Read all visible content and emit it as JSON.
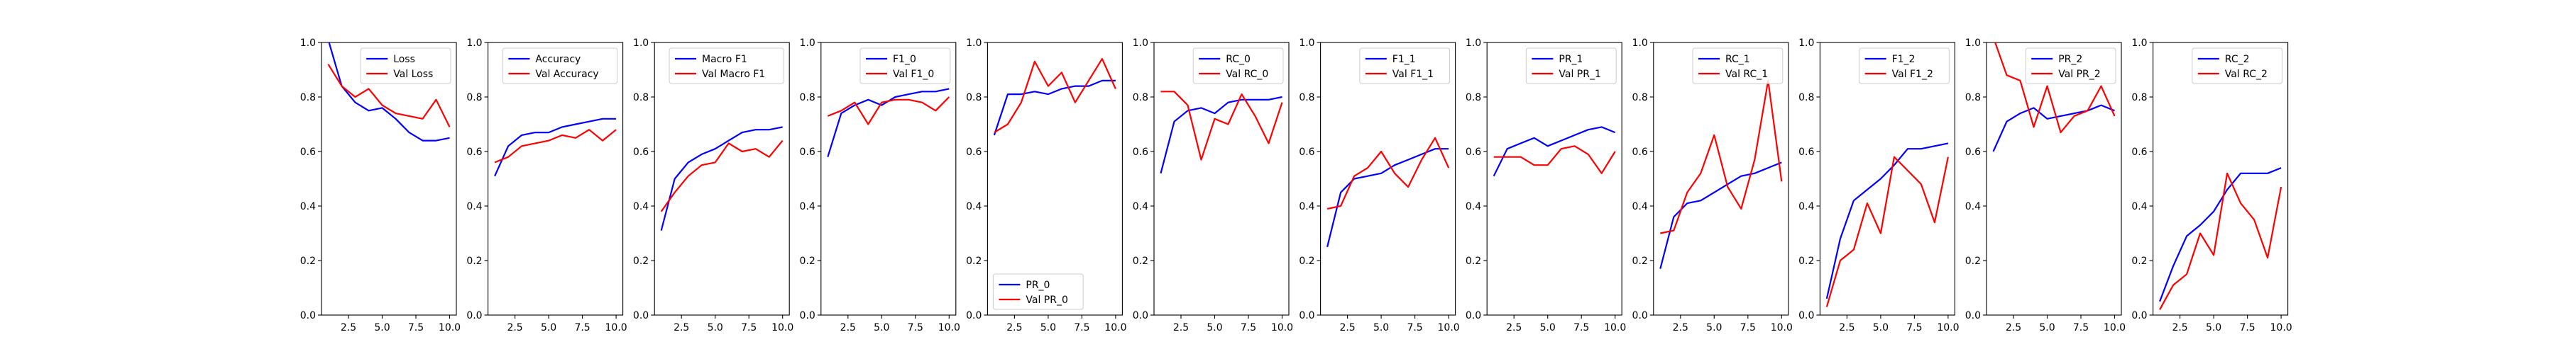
{
  "chart_data": [
    {
      "type": "line",
      "x": [
        1,
        2,
        3,
        4,
        5,
        6,
        7,
        8,
        9,
        10
      ],
      "xlim": [
        0.5,
        10.5
      ],
      "ylim": [
        0,
        1
      ],
      "xticks": [
        2.5,
        5.0,
        7.5,
        10.0
      ],
      "yticks": [
        0.0,
        0.2,
        0.4,
        0.6,
        0.8,
        1.0
      ],
      "legend_position": "top-right",
      "series": [
        {
          "name": "Loss",
          "color": "#0000ff",
          "values": [
            1.01,
            0.84,
            0.78,
            0.75,
            0.76,
            0.72,
            0.67,
            0.64,
            0.64,
            0.65
          ]
        },
        {
          "name": "Val Loss",
          "color": "#ff0000",
          "values": [
            0.92,
            0.84,
            0.8,
            0.83,
            0.77,
            0.74,
            0.73,
            0.72,
            0.79,
            0.69
          ]
        }
      ]
    },
    {
      "type": "line",
      "x": [
        1,
        2,
        3,
        4,
        5,
        6,
        7,
        8,
        9,
        10
      ],
      "xlim": [
        0.5,
        10.5
      ],
      "ylim": [
        0,
        1
      ],
      "xticks": [
        2.5,
        5.0,
        7.5,
        10.0
      ],
      "yticks": [
        0.0,
        0.2,
        0.4,
        0.6,
        0.8,
        1.0
      ],
      "legend_position": "top-right",
      "series": [
        {
          "name": "Accuracy",
          "color": "#0000ff",
          "values": [
            0.51,
            0.62,
            0.66,
            0.67,
            0.67,
            0.69,
            0.7,
            0.71,
            0.72,
            0.72
          ]
        },
        {
          "name": "Val Accuracy",
          "color": "#ff0000",
          "values": [
            0.56,
            0.58,
            0.62,
            0.63,
            0.64,
            0.66,
            0.65,
            0.68,
            0.64,
            0.68
          ]
        }
      ]
    },
    {
      "type": "line",
      "x": [
        1,
        2,
        3,
        4,
        5,
        6,
        7,
        8,
        9,
        10
      ],
      "xlim": [
        0.5,
        10.5
      ],
      "ylim": [
        0,
        1
      ],
      "xticks": [
        2.5,
        5.0,
        7.5,
        10.0
      ],
      "yticks": [
        0.0,
        0.2,
        0.4,
        0.6,
        0.8,
        1.0
      ],
      "legend_position": "top-right",
      "series": [
        {
          "name": "Macro F1",
          "color": "#0000ff",
          "values": [
            0.31,
            0.5,
            0.56,
            0.59,
            0.61,
            0.64,
            0.67,
            0.68,
            0.68,
            0.69
          ]
        },
        {
          "name": "Val Macro F1",
          "color": "#ff0000",
          "values": [
            0.38,
            0.45,
            0.51,
            0.55,
            0.56,
            0.63,
            0.6,
            0.61,
            0.58,
            0.64
          ]
        }
      ]
    },
    {
      "type": "line",
      "x": [
        1,
        2,
        3,
        4,
        5,
        6,
        7,
        8,
        9,
        10
      ],
      "xlim": [
        0.5,
        10.5
      ],
      "ylim": [
        0,
        1
      ],
      "xticks": [
        2.5,
        5.0,
        7.5,
        10.0
      ],
      "yticks": [
        0.0,
        0.2,
        0.4,
        0.6,
        0.8,
        1.0
      ],
      "legend_position": "top-right",
      "series": [
        {
          "name": "F1_0",
          "color": "#0000ff",
          "values": [
            0.58,
            0.74,
            0.77,
            0.79,
            0.77,
            0.8,
            0.81,
            0.82,
            0.82,
            0.83
          ]
        },
        {
          "name": "Val F1_0",
          "color": "#ff0000",
          "values": [
            0.73,
            0.75,
            0.78,
            0.7,
            0.78,
            0.79,
            0.79,
            0.78,
            0.75,
            0.8
          ]
        }
      ]
    },
    {
      "type": "line",
      "x": [
        1,
        2,
        3,
        4,
        5,
        6,
        7,
        8,
        9,
        10
      ],
      "xlim": [
        0.5,
        10.5
      ],
      "ylim": [
        0,
        1
      ],
      "xticks": [
        2.5,
        5.0,
        7.5,
        10.0
      ],
      "yticks": [
        0.0,
        0.2,
        0.4,
        0.6,
        0.8,
        1.0
      ],
      "legend_position": "bottom-left",
      "series": [
        {
          "name": "PR_0",
          "color": "#0000ff",
          "values": [
            0.66,
            0.81,
            0.81,
            0.82,
            0.81,
            0.83,
            0.84,
            0.84,
            0.86,
            0.86
          ]
        },
        {
          "name": "Val PR_0",
          "color": "#ff0000",
          "values": [
            0.67,
            0.7,
            0.78,
            0.93,
            0.84,
            0.89,
            0.78,
            0.86,
            0.94,
            0.83
          ]
        }
      ]
    },
    {
      "type": "line",
      "x": [
        1,
        2,
        3,
        4,
        5,
        6,
        7,
        8,
        9,
        10
      ],
      "xlim": [
        0.5,
        10.5
      ],
      "ylim": [
        0,
        1
      ],
      "xticks": [
        2.5,
        5.0,
        7.5,
        10.0
      ],
      "yticks": [
        0.0,
        0.2,
        0.4,
        0.6,
        0.8,
        1.0
      ],
      "legend_position": "top-right",
      "series": [
        {
          "name": "RC_0",
          "color": "#0000ff",
          "values": [
            0.52,
            0.71,
            0.75,
            0.76,
            0.74,
            0.78,
            0.79,
            0.79,
            0.79,
            0.8
          ]
        },
        {
          "name": "Val RC_0",
          "color": "#ff0000",
          "values": [
            0.82,
            0.82,
            0.77,
            0.57,
            0.72,
            0.7,
            0.81,
            0.73,
            0.63,
            0.78
          ]
        }
      ]
    },
    {
      "type": "line",
      "x": [
        1,
        2,
        3,
        4,
        5,
        6,
        7,
        8,
        9,
        10
      ],
      "xlim": [
        0.5,
        10.5
      ],
      "ylim": [
        0,
        1
      ],
      "xticks": [
        2.5,
        5.0,
        7.5,
        10.0
      ],
      "yticks": [
        0.0,
        0.2,
        0.4,
        0.6,
        0.8,
        1.0
      ],
      "legend_position": "top-right",
      "series": [
        {
          "name": "F1_1",
          "color": "#0000ff",
          "values": [
            0.25,
            0.45,
            0.5,
            0.51,
            0.52,
            0.55,
            0.57,
            0.59,
            0.61,
            0.61
          ]
        },
        {
          "name": "Val F1_1",
          "color": "#ff0000",
          "values": [
            0.39,
            0.4,
            0.51,
            0.54,
            0.6,
            0.52,
            0.47,
            0.57,
            0.65,
            0.54
          ]
        }
      ]
    },
    {
      "type": "line",
      "x": [
        1,
        2,
        3,
        4,
        5,
        6,
        7,
        8,
        9,
        10
      ],
      "xlim": [
        0.5,
        10.5
      ],
      "ylim": [
        0,
        1
      ],
      "xticks": [
        2.5,
        5.0,
        7.5,
        10.0
      ],
      "yticks": [
        0.0,
        0.2,
        0.4,
        0.6,
        0.8,
        1.0
      ],
      "legend_position": "top-right",
      "series": [
        {
          "name": "PR_1",
          "color": "#0000ff",
          "values": [
            0.51,
            0.61,
            0.63,
            0.65,
            0.62,
            0.64,
            0.66,
            0.68,
            0.69,
            0.67
          ]
        },
        {
          "name": "Val PR_1",
          "color": "#ff0000",
          "values": [
            0.58,
            0.58,
            0.58,
            0.55,
            0.55,
            0.61,
            0.62,
            0.59,
            0.52,
            0.6
          ]
        }
      ]
    },
    {
      "type": "line",
      "x": [
        1,
        2,
        3,
        4,
        5,
        6,
        7,
        8,
        9,
        10
      ],
      "xlim": [
        0.5,
        10.5
      ],
      "ylim": [
        0,
        1
      ],
      "xticks": [
        2.5,
        5.0,
        7.5,
        10.0
      ],
      "yticks": [
        0.0,
        0.2,
        0.4,
        0.6,
        0.8,
        1.0
      ],
      "legend_position": "top-right",
      "series": [
        {
          "name": "RC_1",
          "color": "#0000ff",
          "values": [
            0.17,
            0.36,
            0.41,
            0.42,
            0.45,
            0.48,
            0.51,
            0.52,
            0.54,
            0.56
          ]
        },
        {
          "name": "Val RC_1",
          "color": "#ff0000",
          "values": [
            0.3,
            0.31,
            0.45,
            0.52,
            0.66,
            0.47,
            0.39,
            0.57,
            0.86,
            0.49
          ]
        }
      ]
    },
    {
      "type": "line",
      "x": [
        1,
        2,
        3,
        4,
        5,
        6,
        7,
        8,
        9,
        10
      ],
      "xlim": [
        0.5,
        10.5
      ],
      "ylim": [
        0,
        1
      ],
      "xticks": [
        2.5,
        5.0,
        7.5,
        10.0
      ],
      "yticks": [
        0.0,
        0.2,
        0.4,
        0.6,
        0.8,
        1.0
      ],
      "legend_position": "top-right",
      "series": [
        {
          "name": "F1_2",
          "color": "#0000ff",
          "values": [
            0.06,
            0.28,
            0.42,
            0.46,
            0.5,
            0.55,
            0.61,
            0.61,
            0.62,
            0.63
          ]
        },
        {
          "name": "Val F1_2",
          "color": "#ff0000",
          "values": [
            0.03,
            0.2,
            0.24,
            0.41,
            0.3,
            0.58,
            0.53,
            0.48,
            0.34,
            0.58
          ]
        }
      ]
    },
    {
      "type": "line",
      "x": [
        1,
        2,
        3,
        4,
        5,
        6,
        7,
        8,
        9,
        10
      ],
      "xlim": [
        0.5,
        10.5
      ],
      "ylim": [
        0,
        1
      ],
      "xticks": [
        2.5,
        5.0,
        7.5,
        10.0
      ],
      "yticks": [
        0.0,
        0.2,
        0.4,
        0.6,
        0.8,
        1.0
      ],
      "legend_position": "top-right",
      "series": [
        {
          "name": "PR_2",
          "color": "#0000ff",
          "values": [
            0.6,
            0.71,
            0.74,
            0.76,
            0.72,
            0.73,
            0.74,
            0.75,
            0.77,
            0.75
          ]
        },
        {
          "name": "Val PR_2",
          "color": "#ff0000",
          "values": [
            1.02,
            0.88,
            0.86,
            0.69,
            0.84,
            0.67,
            0.73,
            0.75,
            0.84,
            0.73
          ]
        }
      ]
    },
    {
      "type": "line",
      "x": [
        1,
        2,
        3,
        4,
        5,
        6,
        7,
        8,
        9,
        10
      ],
      "xlim": [
        0.5,
        10.5
      ],
      "ylim": [
        0,
        1
      ],
      "xticks": [
        2.5,
        5.0,
        7.5,
        10.0
      ],
      "yticks": [
        0.0,
        0.2,
        0.4,
        0.6,
        0.8,
        1.0
      ],
      "legend_position": "top-right",
      "series": [
        {
          "name": "RC_2",
          "color": "#0000ff",
          "values": [
            0.05,
            0.18,
            0.29,
            0.33,
            0.38,
            0.46,
            0.52,
            0.52,
            0.52,
            0.54
          ]
        },
        {
          "name": "Val RC_2",
          "color": "#ff0000",
          "values": [
            0.02,
            0.11,
            0.15,
            0.3,
            0.22,
            0.52,
            0.41,
            0.35,
            0.21,
            0.47
          ]
        }
      ]
    }
  ]
}
